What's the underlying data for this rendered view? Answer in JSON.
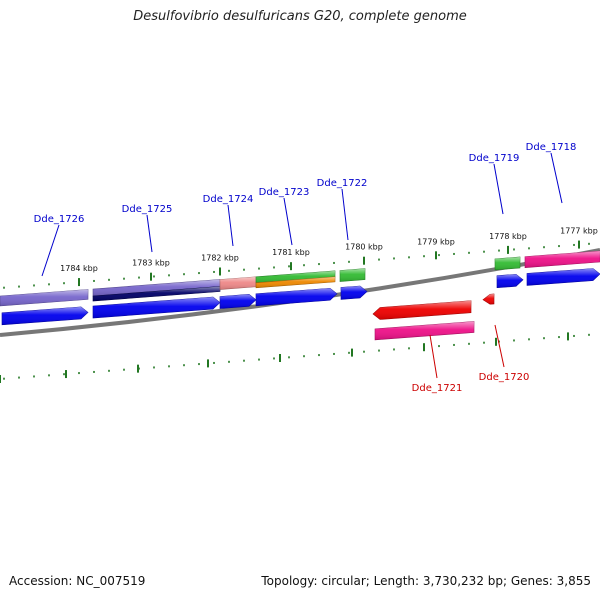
{
  "title": "Desulfovibrio desulfuricans G20, complete genome",
  "footer": {
    "accession": "Accession: NC_007519",
    "summary": "Topology: circular; Length: 3,730,232 bp; Genes: 3,855"
  },
  "colors": {
    "backbone": "#888888",
    "tick": "#227722",
    "forward_label": "#0000cc",
    "reverse_label": "#cc0000",
    "gene_blue": "#0000ee",
    "gene_navy": "#000066",
    "gene_purple": "#7766cc",
    "gene_pink": "#ee1188",
    "gene_salmon": "#ee8888",
    "gene_green": "#33bb33",
    "gene_orange": "#ee8800",
    "gene_red": "#ee0000"
  },
  "ticks": [
    {
      "label": "1784 kbp"
    },
    {
      "label": "1783 kbp"
    },
    {
      "label": "1782 kbp"
    },
    {
      "label": "1781 kbp"
    },
    {
      "label": "1780 kbp"
    },
    {
      "label": "1779 kbp"
    },
    {
      "label": "1778 kbp"
    },
    {
      "label": "1777 kbp"
    }
  ],
  "genes": [
    {
      "name": "Dde_1726",
      "strand": "forward"
    },
    {
      "name": "Dde_1725",
      "strand": "forward"
    },
    {
      "name": "Dde_1724",
      "strand": "forward"
    },
    {
      "name": "Dde_1723",
      "strand": "forward"
    },
    {
      "name": "Dde_1722",
      "strand": "forward"
    },
    {
      "name": "Dde_1719",
      "strand": "forward"
    },
    {
      "name": "Dde_1718",
      "strand": "forward"
    },
    {
      "name": "Dde_1721",
      "strand": "reverse"
    },
    {
      "name": "Dde_1720",
      "strand": "reverse"
    }
  ]
}
